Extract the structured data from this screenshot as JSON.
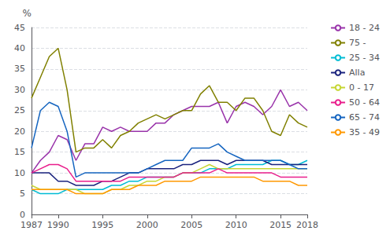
{
  "chart_data": {
    "type": "line",
    "ylabel": "%",
    "x": [
      1987,
      1988,
      1989,
      1990,
      1991,
      1992,
      1993,
      1994,
      1995,
      1996,
      1997,
      1998,
      1999,
      2000,
      2001,
      2002,
      2003,
      2004,
      2005,
      2006,
      2007,
      2008,
      2009,
      2010,
      2011,
      2012,
      2013,
      2014,
      2015,
      2016,
      2017,
      2018
    ],
    "series": [
      {
        "name": "18 - 24",
        "color": "#9933aa",
        "values": [
          10,
          13,
          15,
          19,
          18,
          13,
          17,
          17,
          21,
          20,
          21,
          20,
          20,
          20,
          22,
          22,
          24,
          25,
          26,
          26,
          26,
          27,
          22,
          26,
          27,
          26,
          24,
          26,
          30,
          26,
          27,
          25
        ]
      },
      {
        "name": "75 -",
        "color": "#808000",
        "values": [
          28,
          33,
          38,
          40,
          30,
          15,
          16,
          16,
          18,
          16,
          19,
          20,
          22,
          23,
          24,
          23,
          24,
          25,
          25,
          29,
          31,
          27,
          27,
          25,
          28,
          28,
          25,
          20,
          19,
          24,
          22,
          21
        ]
      },
      {
        "name": "25 - 34",
        "color": "#00bcd4",
        "values": [
          6,
          5,
          5,
          5,
          6,
          6,
          6,
          6,
          6,
          7,
          7,
          8,
          8,
          9,
          9,
          9,
          9,
          10,
          10,
          10,
          11,
          11,
          11,
          12,
          12,
          12,
          12,
          13,
          13,
          12,
          12,
          13
        ]
      },
      {
        "name": "Alla",
        "color": "#1a237e",
        "values": [
          10,
          10,
          10,
          8,
          8,
          7,
          7,
          7,
          8,
          8,
          9,
          10,
          10,
          11,
          11,
          11,
          11,
          12,
          12,
          13,
          13,
          13,
          12,
          13,
          13,
          13,
          13,
          12,
          12,
          12,
          12,
          12
        ]
      },
      {
        "name": "0 - 17",
        "color": "#c6d633",
        "values": [
          7,
          6,
          6,
          6,
          6,
          6,
          5,
          5,
          5,
          6,
          6,
          7,
          7,
          8,
          8,
          9,
          9,
          10,
          10,
          11,
          12,
          11,
          11,
          11,
          11,
          11,
          11,
          11,
          11,
          11,
          11,
          11
        ]
      },
      {
        "name": "50 - 64",
        "color": "#e91e8c",
        "values": [
          10,
          11,
          12,
          12,
          11,
          8,
          8,
          8,
          8,
          8,
          8,
          9,
          9,
          9,
          9,
          9,
          9,
          10,
          10,
          10,
          10,
          11,
          10,
          10,
          10,
          10,
          10,
          10,
          9,
          9,
          9,
          9
        ]
      },
      {
        "name": "65 - 74",
        "color": "#1565c0",
        "values": [
          16,
          25,
          27,
          26,
          20,
          9,
          10,
          10,
          10,
          10,
          10,
          10,
          10,
          11,
          12,
          13,
          13,
          13,
          16,
          16,
          16,
          17,
          15,
          14,
          13,
          13,
          13,
          13,
          13,
          12,
          11,
          11
        ]
      },
      {
        "name": "35 - 49",
        "color": "#ff9800",
        "values": [
          6,
          6,
          6,
          6,
          6,
          5,
          5,
          5,
          5,
          6,
          6,
          6,
          7,
          7,
          7,
          8,
          8,
          8,
          8,
          9,
          9,
          9,
          9,
          9,
          9,
          9,
          8,
          8,
          8,
          8,
          7,
          7
        ]
      }
    ],
    "xlim": [
      1987,
      2018
    ],
    "xticks": [
      1987,
      1990,
      1995,
      2000,
      2005,
      2010,
      2015,
      2018
    ],
    "ylim": [
      0,
      45
    ],
    "yticks": [
      0,
      5,
      10,
      15,
      20,
      25,
      30,
      35,
      40,
      45
    ],
    "grid": true,
    "legend": "right"
  }
}
